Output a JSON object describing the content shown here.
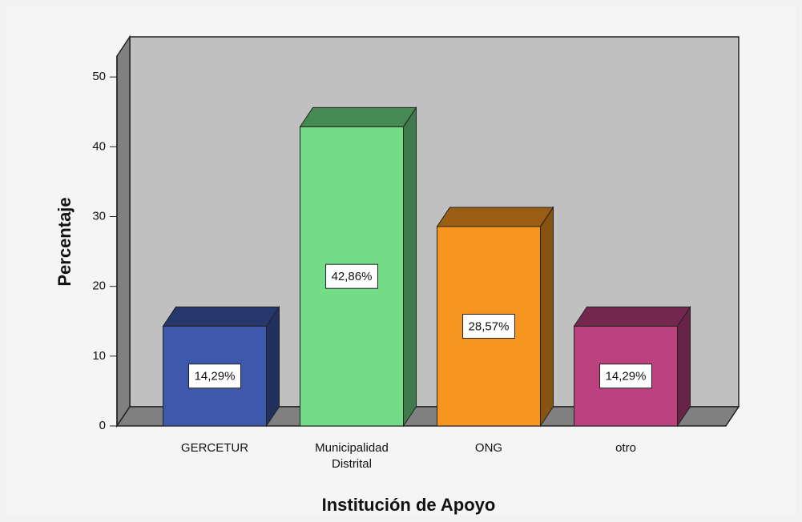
{
  "chart_data": {
    "type": "bar3d",
    "categories": [
      "GERCETUR",
      "Municipalidad Distrital",
      "ONG",
      "otro"
    ],
    "values": [
      14.29,
      42.86,
      28.57,
      14.29
    ],
    "value_labels": [
      "14,29%",
      "42,86%",
      "28,57%",
      "14,29%"
    ],
    "colors": [
      "#3e58ac",
      "#72dd86",
      "#f7961f",
      "#bc417f"
    ],
    "x_label": "Institución de Apoyo",
    "y_label": "Percentaje",
    "ylim": [
      0,
      53
    ],
    "yticks": [
      0,
      10,
      20,
      30,
      40,
      50
    ]
  }
}
